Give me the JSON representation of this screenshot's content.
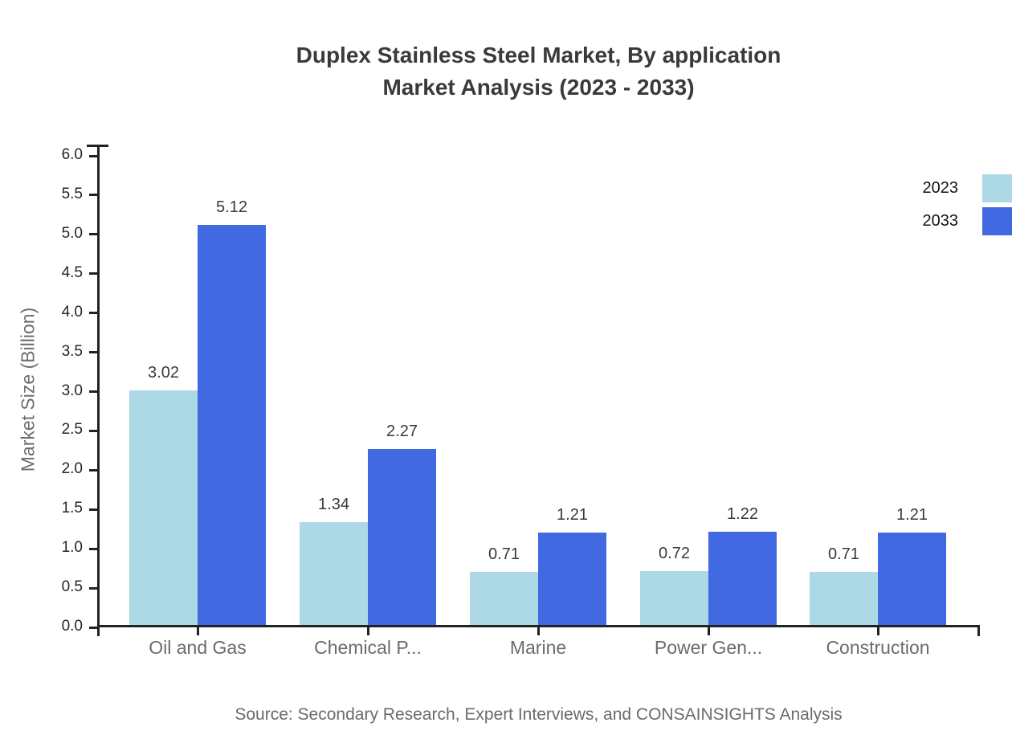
{
  "title": {
    "line1": "Duplex Stainless Steel Market, By application",
    "line2": "Market Analysis (2023 - 2033)"
  },
  "source": "Source: Secondary Research, Expert Interviews, and CONSAINSIGHTS Analysis",
  "colors": {
    "series_2023": "#add8e6",
    "series_2033": "#4169e1",
    "axis": "#222222",
    "title_text": "#3a3a3a",
    "tick_label_text": "#262626",
    "muted_text": "#6b6b6b",
    "value_label_text": "#3a3a3a",
    "legend_text": "#141414",
    "background": "#ffffff"
  },
  "chart_data": {
    "type": "bar",
    "title": "Duplex Stainless Steel Market, By application Market Analysis (2023 - 2033)",
    "categories": [
      "Oil and Gas",
      "Chemical P...",
      "Marine",
      "Power Gen...",
      "Construction"
    ],
    "series": [
      {
        "name": "2023",
        "color": "#add8e6",
        "values": [
          3.02,
          1.34,
          0.71,
          0.72,
          0.71
        ]
      },
      {
        "name": "2033",
        "color": "#4169e1",
        "values": [
          5.12,
          2.27,
          1.21,
          1.22,
          1.21
        ]
      }
    ],
    "xlabel": "",
    "ylabel": "Market Size (Billion)",
    "ylim": [
      0,
      6
    ],
    "ytick_step": 0.5,
    "ytick_labels": [
      "0.0",
      "0.5",
      "1.0",
      "1.5",
      "2.0",
      "2.5",
      "3.0",
      "3.5",
      "4.0",
      "4.5",
      "5.0",
      "5.5",
      "6.0"
    ],
    "grid": false,
    "value_labels": true,
    "value_label_format": "2dp",
    "legend_position": "top-right"
  }
}
